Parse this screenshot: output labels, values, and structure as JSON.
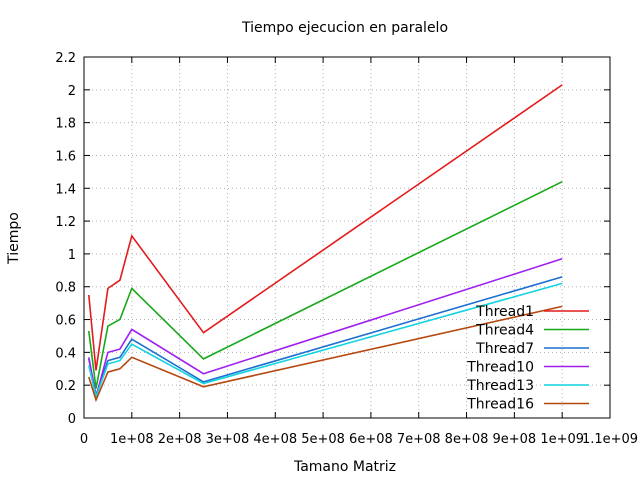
{
  "chart_data": {
    "type": "line",
    "title": "Tiempo ejecucion en paralelo",
    "xlabel": "Tamano Matriz",
    "ylabel": "Tiempo",
    "xlim": [
      0,
      1100000000
    ],
    "ylim": [
      0,
      2.2
    ],
    "x_ticks": [
      0,
      100000000,
      200000000,
      300000000,
      400000000,
      500000000,
      600000000,
      700000000,
      800000000,
      900000000,
      1000000000,
      1100000000
    ],
    "x_tick_labels": [
      "0",
      "1e+08",
      "2e+08",
      "3e+08",
      "4e+08",
      "5e+08",
      "6e+08",
      "7e+08",
      "8e+08",
      "9e+08",
      "1e+09",
      "1.1e+09"
    ],
    "y_ticks": [
      0,
      0.2,
      0.4,
      0.6,
      0.8,
      1,
      1.2,
      1.4,
      1.6,
      1.8,
      2,
      2.2
    ],
    "y_tick_labels": [
      "0",
      "0.2",
      "0.4",
      "0.6",
      "0.8",
      "1",
      "1.2",
      "1.4",
      "1.6",
      "1.8",
      "2",
      "2.2"
    ],
    "grid": true,
    "legend_position": "right",
    "x": [
      10000000,
      25000000,
      50000000,
      75000000,
      100000000,
      250000000,
      1000000000
    ],
    "series": [
      {
        "name": "Thread1",
        "color": "#e41a1c",
        "values": [
          0.75,
          0.29,
          0.79,
          0.84,
          1.11,
          0.52,
          2.03
        ]
      },
      {
        "name": "Thread4",
        "color": "#17a81a",
        "values": [
          0.53,
          0.18,
          0.56,
          0.6,
          0.79,
          0.36,
          1.44
        ]
      },
      {
        "name": "Thread7",
        "color": "#1c6fd1",
        "values": [
          0.36,
          0.14,
          0.35,
          0.37,
          0.48,
          0.22,
          0.86
        ]
      },
      {
        "name": "Thread10",
        "color": "#a020f0",
        "values": [
          0.37,
          0.13,
          0.4,
          0.42,
          0.54,
          0.27,
          0.97
        ]
      },
      {
        "name": "Thread13",
        "color": "#11d4e0",
        "values": [
          0.32,
          0.13,
          0.33,
          0.35,
          0.45,
          0.21,
          0.82
        ]
      },
      {
        "name": "Thread16",
        "color": "#b5480f",
        "values": [
          0.25,
          0.11,
          0.28,
          0.3,
          0.37,
          0.19,
          0.68
        ]
      }
    ]
  }
}
